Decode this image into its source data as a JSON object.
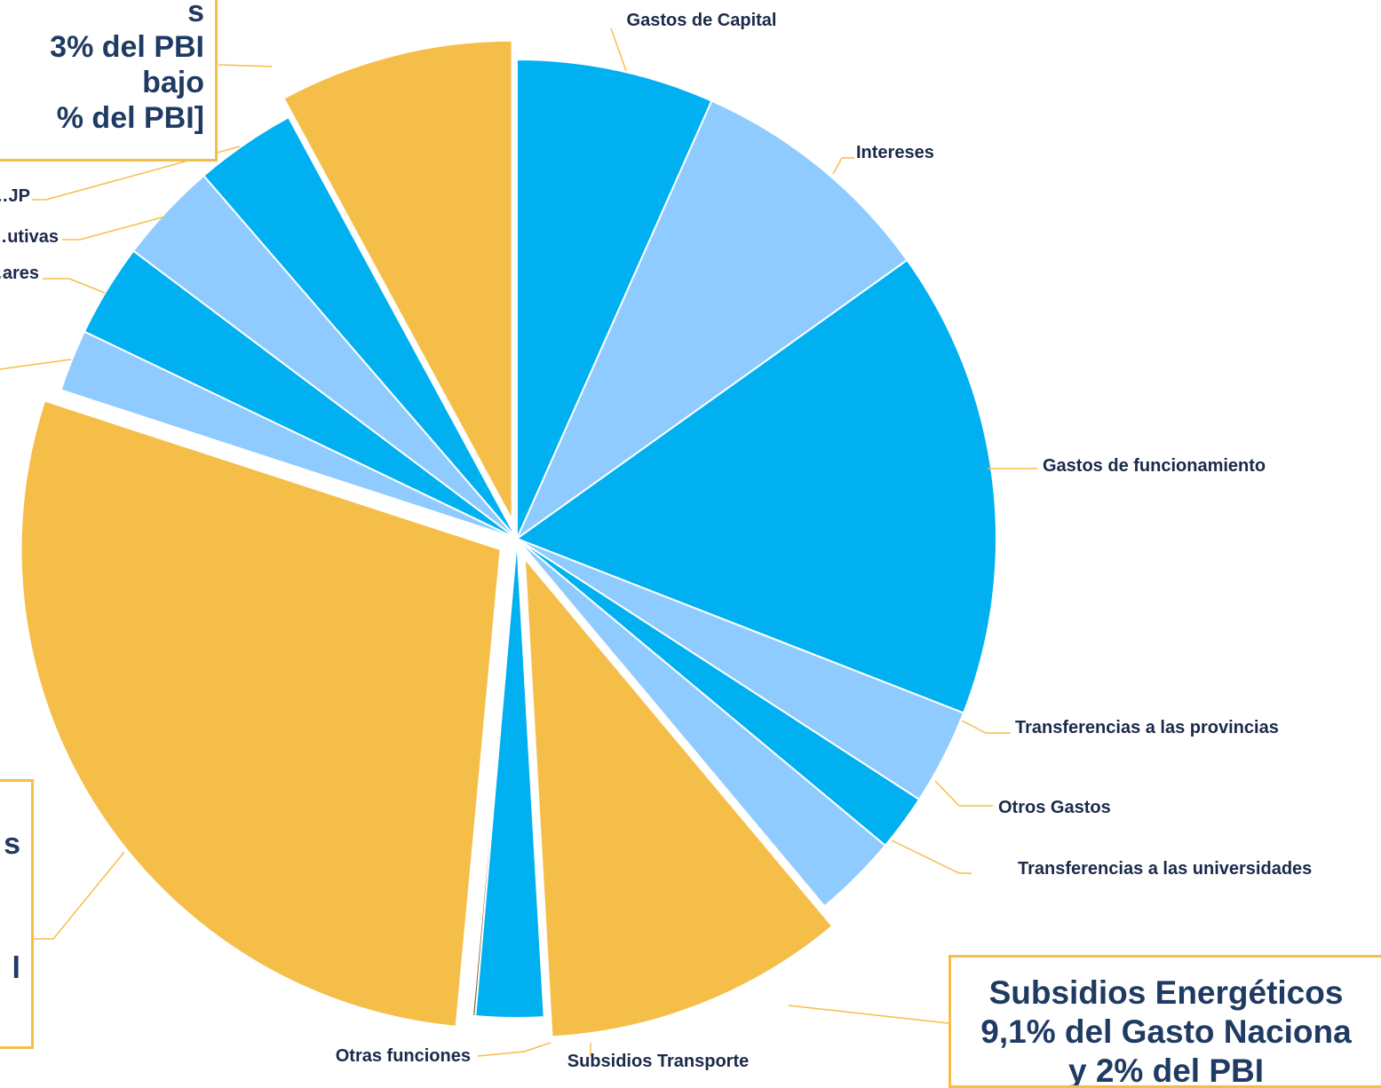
{
  "chart_data": {
    "type": "pie",
    "slices": [
      {
        "label": "Gastos de Capital",
        "value": 7.0,
        "color": "#00b0f0"
      },
      {
        "label": "Intereses",
        "value": 8.9,
        "color": "#8fcbff"
      },
      {
        "label": "Gastos de funcionamiento",
        "value": 16.6,
        "color": "#00b0f0"
      },
      {
        "label": "Transferencias a las provincias",
        "value": 3.4,
        "color": "#8fcbff"
      },
      {
        "label": "Otros Gastos",
        "value": 2.0,
        "color": "#00b0f0"
      },
      {
        "label": "Transferencias a las universidades",
        "value": 3.0,
        "color": "#8fcbff"
      },
      {
        "label": "",
        "value": 10.7,
        "color": "#f5be48"
      },
      {
        "label": "Subsidios Transporte",
        "value": 2.4,
        "color": "#00b0f0"
      },
      {
        "label": "Otras funciones",
        "value": 0.1,
        "color": "#7a5a3a"
      },
      {
        "label": "",
        "value": 30.0,
        "color": "#f5be48"
      },
      {
        "label": "",
        "value": 2.2,
        "color": "#8fcbff"
      },
      {
        "label": "…ares",
        "value": 3.3,
        "color": "#00b0f0"
      },
      {
        "label": "…utivas",
        "value": 3.6,
        "color": "#8fcbff"
      },
      {
        "label": "…JP",
        "value": 3.6,
        "color": "#00b0f0"
      },
      {
        "label": "",
        "value": 8.3,
        "color": "#f5be48"
      }
    ],
    "legend": "none",
    "leader_color": "#f5be48"
  },
  "callouts": {
    "top": [
      "s",
      "3% del PBI",
      "bajo",
      "% del PBI]"
    ],
    "left": [
      "s",
      "l"
    ],
    "right": [
      "Subsidios Energéticos",
      "9,1% del Gasto Naciona",
      "y 2% del PBI"
    ]
  }
}
